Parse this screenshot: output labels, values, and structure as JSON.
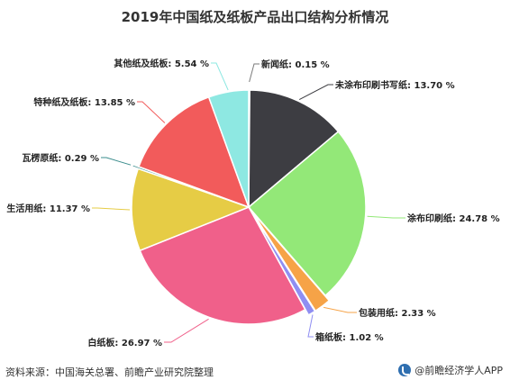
{
  "chart_data": {
    "type": "pie",
    "title": "2019年中国纸及纸板产品出口结构分析情况",
    "unit": "%",
    "slices": [
      {
        "name": "新闻纸",
        "value": 0.15,
        "color": "#7a7a7a"
      },
      {
        "name": "未涂布印刷书写纸",
        "value": 13.7,
        "color": "#3d3d42"
      },
      {
        "name": "涂布印刷纸",
        "value": 24.78,
        "color": "#93e878"
      },
      {
        "name": "包装用纸",
        "value": 2.33,
        "color": "#f6a347"
      },
      {
        "name": "箱纸板",
        "value": 1.02,
        "color": "#8f8ef2"
      },
      {
        "name": "白纸板",
        "value": 26.97,
        "color": "#f0608a"
      },
      {
        "name": "生活用纸",
        "value": 11.37,
        "color": "#e6cc45"
      },
      {
        "name": "瓦楞原纸",
        "value": 0.29,
        "color": "#3a8c8c"
      },
      {
        "name": "特种纸及纸板",
        "value": 13.85,
        "color": "#f25b5b"
      },
      {
        "name": "其他纸及纸板",
        "value": 5.54,
        "color": "#8ee8e2"
      }
    ]
  },
  "footer": {
    "source": "资料来源：中国海关总署、前瞻产业研究院整理",
    "brand": "@前瞻经济学人APP"
  }
}
